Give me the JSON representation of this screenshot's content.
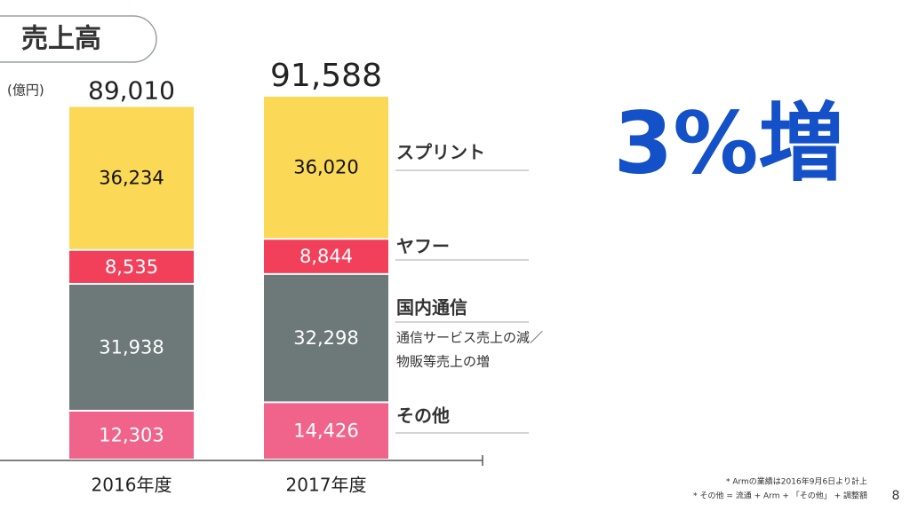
{
  "slide": {
    "title": "売上高",
    "headline": "3%増",
    "footnotes": [
      "* Armの業績は2016年9月6日より計上",
      "* その他 = 流通 + Arm + 「その他」 + 調整額"
    ],
    "page_number": "8"
  },
  "chart_data": {
    "type": "stacked-bar",
    "unit": "(億円)",
    "categories": [
      "2016年度",
      "2017年度"
    ],
    "series": [
      {
        "name": "その他",
        "color": "#f0648c",
        "values": [
          12303,
          14426
        ],
        "value_labels": [
          "12,303",
          "14,426"
        ]
      },
      {
        "name": "国内通信",
        "color": "#6d7878",
        "values": [
          31938,
          32298
        ],
        "value_labels": [
          "31,938",
          "32,298"
        ]
      },
      {
        "name": "ヤフー",
        "color": "#f2405a",
        "values": [
          8535,
          8844
        ],
        "value_labels": [
          "8,535",
          "8,844"
        ]
      },
      {
        "name": "スプリント",
        "color": "#fbd855",
        "values": [
          36234,
          36020
        ],
        "value_labels": [
          "36,234",
          "36,020"
        ]
      }
    ],
    "totals": [
      89010,
      91588
    ],
    "total_labels": [
      "89,010",
      "91,588"
    ],
    "annotation": [
      "通信サービス売上の減／",
      "物販等売上の増"
    ]
  }
}
